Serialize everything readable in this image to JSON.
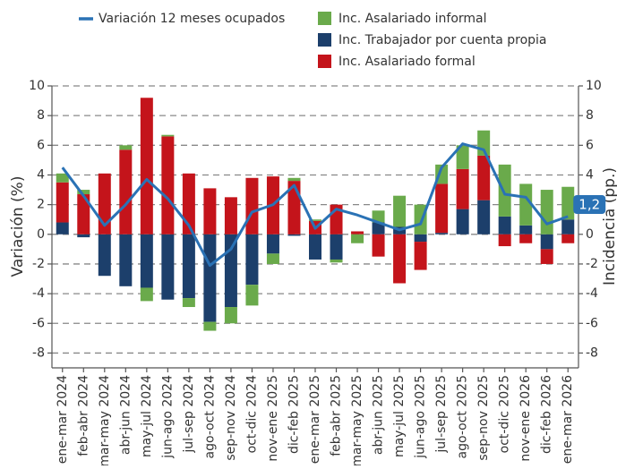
{
  "chart_data": {
    "type": "bar",
    "categories": [
      "ene-mar 2024",
      "feb-abr 2024",
      "mar-may 2024",
      "abr-jun 2024",
      "may-jul 2024",
      "jun-ago 2024",
      "jul-sep 2024",
      "ago-oct 2024",
      "sep-nov 2024",
      "oct-dic 2024",
      "nov-ene 2025",
      "dic-feb 2025",
      "ene-mar 2025",
      "feb-abr 2025",
      "mar-may 2025",
      "abr-jun 2025",
      "may-jul 2025",
      "jun-ago 2025",
      "jul-sep 2025",
      "ago-oct 2025",
      "sep-nov 2025",
      "oct-dic 2025",
      "nov-ene 2026",
      "dic-feb 2026",
      "ene-mar 2026"
    ],
    "series": [
      {
        "name": "Variación 12 meses ocupados",
        "type": "line",
        "axis": "y",
        "color": "#2a72b5",
        "values": [
          4.5,
          2.6,
          0.6,
          2.0,
          3.7,
          2.4,
          0.6,
          -2.1,
          -1.0,
          1.5,
          2.0,
          3.3,
          0.4,
          1.7,
          1.3,
          0.8,
          0.3,
          0.7,
          4.5,
          6.1,
          5.7,
          2.7,
          2.5,
          0.7,
          1.2
        ],
        "value_labels": [
          null,
          null,
          null,
          null,
          null,
          null,
          null,
          null,
          null,
          null,
          null,
          null,
          null,
          null,
          null,
          null,
          null,
          null,
          null,
          null,
          null,
          null,
          null,
          null,
          "1,2"
        ]
      },
      {
        "name": "Inc. Asalariado informal",
        "type": "bar",
        "axis": "y2",
        "color": "#6aaa4b",
        "values": [
          0.6,
          0.3,
          0,
          0.3,
          -0.9,
          0.1,
          -0.6,
          -0.6,
          -1.1,
          -1.4,
          -0.7,
          0.2,
          0.1,
          -0.2,
          -0.6,
          0.8,
          2.1,
          2.0,
          1.3,
          1.6,
          1.7,
          3.5,
          2.8,
          3.0,
          2.2
        ]
      },
      {
        "name": "Inc. Trabajador por cuenta propia",
        "type": "bar",
        "axis": "y2",
        "color": "#1c3f6b",
        "values": [
          0.8,
          -0.2,
          -2.8,
          -3.5,
          -3.6,
          -4.4,
          -4.3,
          -5.9,
          -4.9,
          -3.4,
          -1.3,
          -0.1,
          -1.7,
          -1.7,
          0,
          0.8,
          0.5,
          -0.5,
          0.1,
          1.7,
          2.3,
          1.2,
          0.6,
          -1.0,
          1.0
        ]
      },
      {
        "name": "Inc. Asalariado formal",
        "type": "bar",
        "axis": "y2",
        "color": "#c4141b",
        "values": [
          2.7,
          2.7,
          4.1,
          5.7,
          9.2,
          6.6,
          4.1,
          3.1,
          2.5,
          3.8,
          3.9,
          3.6,
          0.9,
          2.0,
          0.2,
          -1.5,
          -3.3,
          -1.9,
          3.3,
          2.7,
          3.0,
          -0.8,
          -0.6,
          -1.0,
          -0.6
        ]
      }
    ],
    "ylabel": "Variación (%)",
    "y2label": "Incidencia (pp.)",
    "ylim": [
      -9,
      10
    ],
    "yticks": [
      -8,
      -6,
      -4,
      -2,
      0,
      2,
      4,
      6,
      8,
      10
    ],
    "y2lim": [
      -9,
      10
    ],
    "y2ticks": [
      -8,
      -6,
      -4,
      -2,
      0,
      2,
      4,
      6,
      8,
      10
    ],
    "grid": true
  }
}
